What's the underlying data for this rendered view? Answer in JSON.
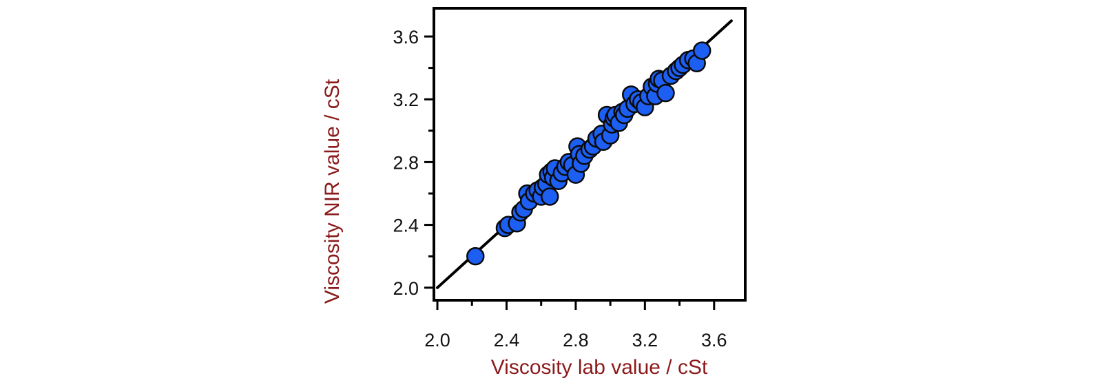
{
  "chart_data": {
    "type": "scatter",
    "title": "",
    "xlabel": "Viscosity lab value / cSt",
    "ylabel": "Viscosity NIR value / cSt",
    "xlim": [
      1.98,
      3.78
    ],
    "ylim": [
      1.92,
      3.78
    ],
    "xticks": [
      "2.0",
      "2.4",
      "2.8",
      "3.2",
      "3.6"
    ],
    "yticks": [
      "2.0",
      "2.4",
      "2.8",
      "3.2",
      "3.6"
    ],
    "grid": false,
    "legend": "none",
    "reference_line": {
      "x": [
        2.0,
        3.7
      ],
      "y": [
        2.0,
        3.7
      ]
    },
    "colors": {
      "points": "#1c5ff2",
      "point_outline": "#0a0a0a",
      "line": "#000000",
      "axis_title": "#8b1a1a",
      "frame": "#000000"
    },
    "series": [
      {
        "x": [
          2.22,
          2.39,
          2.41,
          2.46,
          2.48,
          2.5,
          2.52,
          2.53,
          2.56,
          2.58,
          2.6,
          2.61,
          2.63,
          2.64,
          2.65,
          2.66,
          2.67,
          2.68,
          2.7,
          2.72,
          2.74,
          2.76,
          2.78,
          2.8,
          2.81,
          2.82,
          2.83,
          2.85,
          2.88,
          2.9,
          2.92,
          2.95,
          2.96,
          2.98,
          3.0,
          3.01,
          3.02,
          3.03,
          3.05,
          3.07,
          3.08,
          3.1,
          3.12,
          3.14,
          3.16,
          3.18,
          3.2,
          3.22,
          3.24,
          3.26,
          3.27,
          3.28,
          3.3,
          3.32,
          3.35,
          3.38,
          3.4,
          3.42,
          3.45,
          3.48,
          3.5,
          3.53
        ],
        "y": [
          2.2,
          2.38,
          2.4,
          2.41,
          2.48,
          2.5,
          2.6,
          2.55,
          2.6,
          2.62,
          2.58,
          2.64,
          2.66,
          2.72,
          2.58,
          2.74,
          2.7,
          2.76,
          2.68,
          2.73,
          2.77,
          2.8,
          2.78,
          2.72,
          2.9,
          2.85,
          2.79,
          2.84,
          2.88,
          2.9,
          2.95,
          2.98,
          2.93,
          3.1,
          2.97,
          3.04,
          3.08,
          3.1,
          3.05,
          3.12,
          3.1,
          3.14,
          3.23,
          3.17,
          3.2,
          3.18,
          3.15,
          3.22,
          3.28,
          3.22,
          3.3,
          3.33,
          3.32,
          3.24,
          3.35,
          3.38,
          3.4,
          3.42,
          3.45,
          3.46,
          3.43,
          3.51
        ]
      }
    ]
  }
}
